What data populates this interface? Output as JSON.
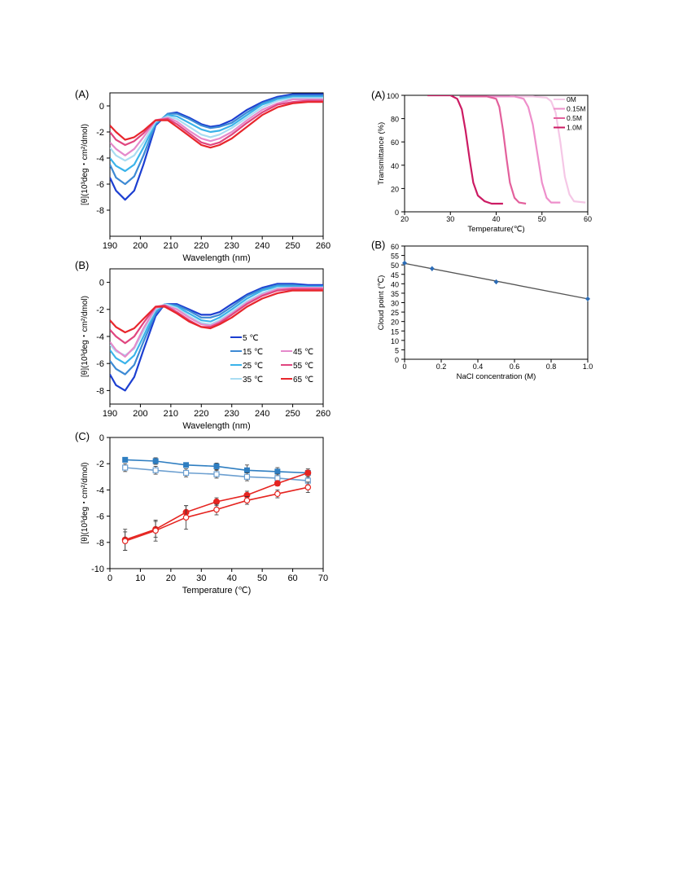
{
  "colors": {
    "t5": "#1c3fd1",
    "t15": "#3d8ad4",
    "t25": "#3ab3ea",
    "t35": "#a9ddf2",
    "t45": "#e58acb",
    "t55": "#e0457f",
    "t65": "#e8262c",
    "c0": "#f5c7e6",
    "c015": "#ee8fcb",
    "c05": "#e3609c",
    "c10": "#cc1b63",
    "blue_filled": "#2f7ec1",
    "blue_open": "#6c9fd0",
    "red": "#e52420",
    "fit_line": "#555555",
    "marker": "#2b6bb5"
  },
  "chart_data": [
    {
      "id": "left_A",
      "type": "line",
      "panel_label": "(A)",
      "xlabel": "Wavelength (nm)",
      "ylabel": "[θ](10³deg・cm²/dmol)",
      "xlim": [
        190,
        260
      ],
      "ylim": [
        -10,
        1
      ],
      "xticks": [
        190,
        200,
        210,
        220,
        230,
        240,
        250,
        260
      ],
      "yticks": [
        0,
        -2,
        -4,
        -6,
        -8
      ],
      "series": [
        {
          "color_key": "t5",
          "x": [
            190,
            192,
            195,
            198,
            201,
            205,
            209,
            212,
            216,
            220,
            223,
            226,
            230,
            235,
            240,
            245,
            250,
            255,
            260
          ],
          "y": [
            -5.5,
            -6.5,
            -7.2,
            -6.5,
            -4.5,
            -1.5,
            -0.6,
            -0.5,
            -0.9,
            -1.4,
            -1.6,
            -1.5,
            -1.1,
            -0.3,
            0.3,
            0.7,
            0.9,
            0.9,
            0.9
          ]
        },
        {
          "color_key": "t15",
          "x": [
            190,
            192,
            195,
            198,
            201,
            205,
            209,
            212,
            216,
            220,
            223,
            226,
            230,
            235,
            240,
            245,
            250,
            255,
            260
          ],
          "y": [
            -4.5,
            -5.5,
            -6.0,
            -5.4,
            -3.8,
            -1.4,
            -0.6,
            -0.6,
            -1.0,
            -1.5,
            -1.7,
            -1.6,
            -1.3,
            -0.5,
            0.2,
            0.6,
            0.8,
            0.8,
            0.8
          ]
        },
        {
          "color_key": "t25",
          "x": [
            190,
            192,
            195,
            198,
            201,
            205,
            209,
            212,
            216,
            220,
            223,
            226,
            230,
            235,
            240,
            245,
            250,
            255,
            260
          ],
          "y": [
            -4.0,
            -4.6,
            -5.0,
            -4.5,
            -3.2,
            -1.3,
            -0.7,
            -0.8,
            -1.3,
            -1.8,
            -2.0,
            -1.9,
            -1.5,
            -0.7,
            0.1,
            0.5,
            0.7,
            0.7,
            0.7
          ]
        },
        {
          "color_key": "t35",
          "x": [
            190,
            192,
            195,
            198,
            201,
            205,
            209,
            212,
            216,
            220,
            223,
            226,
            230,
            235,
            240,
            245,
            250,
            255,
            260
          ],
          "y": [
            -3.2,
            -3.8,
            -4.2,
            -3.8,
            -2.8,
            -1.2,
            -0.8,
            -1.0,
            -1.6,
            -2.2,
            -2.4,
            -2.2,
            -1.7,
            -0.9,
            -0.1,
            0.4,
            0.6,
            0.6,
            0.6
          ]
        },
        {
          "color_key": "t45",
          "x": [
            190,
            192,
            195,
            198,
            201,
            205,
            209,
            212,
            216,
            220,
            223,
            226,
            230,
            235,
            240,
            245,
            250,
            255,
            260
          ],
          "y": [
            -2.8,
            -3.3,
            -3.8,
            -3.3,
            -2.4,
            -1.1,
            -0.9,
            -1.2,
            -1.9,
            -2.5,
            -2.7,
            -2.5,
            -2.0,
            -1.1,
            -0.3,
            0.2,
            0.5,
            0.5,
            0.5
          ]
        },
        {
          "color_key": "t55",
          "x": [
            190,
            192,
            195,
            198,
            201,
            205,
            209,
            212,
            216,
            220,
            223,
            226,
            230,
            235,
            240,
            245,
            250,
            255,
            260
          ],
          "y": [
            -2.0,
            -2.6,
            -3.0,
            -2.7,
            -2.1,
            -1.1,
            -1.0,
            -1.4,
            -2.1,
            -2.8,
            -3.0,
            -2.8,
            -2.2,
            -1.3,
            -0.5,
            0.1,
            0.3,
            0.4,
            0.4
          ]
        },
        {
          "color_key": "t65",
          "x": [
            190,
            192,
            195,
            198,
            201,
            205,
            209,
            212,
            216,
            220,
            223,
            226,
            230,
            235,
            240,
            245,
            250,
            255,
            260
          ],
          "y": [
            -1.5,
            -2.0,
            -2.6,
            -2.4,
            -1.9,
            -1.1,
            -1.1,
            -1.6,
            -2.3,
            -3.0,
            -3.2,
            -3.0,
            -2.5,
            -1.6,
            -0.7,
            -0.1,
            0.2,
            0.3,
            0.3
          ]
        }
      ]
    },
    {
      "id": "left_B",
      "type": "line",
      "panel_label": "(B)",
      "xlabel": "Wavelength (nm)",
      "ylabel": "[θ](10³deg・cm²/dmol)",
      "xlim": [
        190,
        260
      ],
      "ylim": [
        -9,
        1
      ],
      "xticks": [
        190,
        200,
        210,
        220,
        230,
        240,
        250,
        260
      ],
      "yticks": [
        0,
        -2,
        -4,
        -6,
        -8
      ],
      "legend": [
        "5 ℃",
        "15 ℃",
        "25 ℃",
        "35 ℃",
        "45 ℃",
        "55 ℃",
        "65 ℃"
      ],
      "series": [
        {
          "name": "5 ℃",
          "color_key": "t5",
          "x": [
            190,
            192,
            195,
            198,
            201,
            205,
            208,
            212,
            216,
            220,
            223,
            226,
            230,
            235,
            240,
            245,
            250,
            255,
            260
          ],
          "y": [
            -6.8,
            -7.6,
            -8.0,
            -7.0,
            -5.0,
            -2.5,
            -1.6,
            -1.6,
            -2.0,
            -2.4,
            -2.4,
            -2.2,
            -1.6,
            -0.9,
            -0.4,
            -0.1,
            -0.1,
            -0.2,
            -0.2
          ]
        },
        {
          "name": "15 ℃",
          "color_key": "t15",
          "x": [
            190,
            192,
            195,
            198,
            201,
            205,
            208,
            212,
            216,
            220,
            223,
            226,
            230,
            235,
            240,
            245,
            250,
            255,
            260
          ],
          "y": [
            -5.8,
            -6.4,
            -6.8,
            -6.1,
            -4.4,
            -2.3,
            -1.6,
            -1.7,
            -2.1,
            -2.6,
            -2.6,
            -2.4,
            -1.8,
            -1.0,
            -0.5,
            -0.2,
            -0.2,
            -0.3,
            -0.3
          ]
        },
        {
          "name": "25 ℃",
          "color_key": "t25",
          "x": [
            190,
            192,
            195,
            198,
            201,
            205,
            208,
            212,
            216,
            220,
            223,
            226,
            230,
            235,
            240,
            245,
            250,
            255,
            260
          ],
          "y": [
            -5.0,
            -5.6,
            -6.0,
            -5.4,
            -4.0,
            -2.1,
            -1.6,
            -1.8,
            -2.3,
            -2.8,
            -2.9,
            -2.6,
            -2.0,
            -1.2,
            -0.6,
            -0.3,
            -0.3,
            -0.3,
            -0.3
          ]
        },
        {
          "name": "35 ℃",
          "color_key": "t35",
          "x": [
            190,
            192,
            195,
            198,
            201,
            205,
            208,
            212,
            216,
            220,
            223,
            226,
            230,
            235,
            240,
            245,
            250,
            255,
            260
          ],
          "y": [
            -4.6,
            -5.1,
            -5.4,
            -4.9,
            -3.6,
            -2.0,
            -1.6,
            -1.9,
            -2.5,
            -3.0,
            -3.1,
            -2.8,
            -2.2,
            -1.4,
            -0.8,
            -0.4,
            -0.4,
            -0.4,
            -0.4
          ]
        },
        {
          "name": "45 ℃",
          "color_key": "t45",
          "x": [
            190,
            192,
            195,
            198,
            201,
            205,
            208,
            212,
            216,
            220,
            223,
            226,
            230,
            235,
            240,
            245,
            250,
            255,
            260
          ],
          "y": [
            -4.4,
            -5.0,
            -5.5,
            -4.8,
            -3.4,
            -1.9,
            -1.7,
            -2.0,
            -2.6,
            -3.1,
            -3.2,
            -2.9,
            -2.3,
            -1.5,
            -0.9,
            -0.5,
            -0.4,
            -0.4,
            -0.4
          ]
        },
        {
          "name": "55 ℃",
          "color_key": "t55",
          "x": [
            190,
            192,
            195,
            198,
            201,
            205,
            208,
            212,
            216,
            220,
            223,
            226,
            230,
            235,
            240,
            245,
            250,
            255,
            260
          ],
          "y": [
            -3.5,
            -4.0,
            -4.5,
            -4.0,
            -3.0,
            -1.8,
            -1.7,
            -2.2,
            -2.8,
            -3.3,
            -3.3,
            -3.0,
            -2.4,
            -1.6,
            -1.0,
            -0.6,
            -0.5,
            -0.5,
            -0.5
          ]
        },
        {
          "name": "65 ℃",
          "color_key": "t65",
          "x": [
            190,
            192,
            195,
            198,
            201,
            205,
            208,
            212,
            216,
            220,
            223,
            226,
            230,
            235,
            240,
            245,
            250,
            255,
            260
          ],
          "y": [
            -2.8,
            -3.3,
            -3.7,
            -3.4,
            -2.7,
            -1.8,
            -1.8,
            -2.3,
            -2.9,
            -3.3,
            -3.4,
            -3.1,
            -2.6,
            -1.8,
            -1.2,
            -0.8,
            -0.6,
            -0.6,
            -0.6
          ]
        }
      ]
    },
    {
      "id": "left_C",
      "type": "line",
      "panel_label": "(C)",
      "xlabel": "Temperature (℃)",
      "ylabel": "[θ](10³deg・cm²/dmol)",
      "xlim": [
        0,
        70
      ],
      "ylim": [
        -10,
        0
      ],
      "xticks": [
        0,
        10,
        20,
        30,
        40,
        50,
        60,
        70
      ],
      "yticks": [
        0,
        -2,
        -4,
        -6,
        -8,
        -10
      ],
      "series": [
        {
          "color_key": "blue_filled",
          "marker": "filled-square",
          "x": [
            5,
            15,
            25,
            35,
            45,
            55,
            65
          ],
          "y": [
            -1.7,
            -1.8,
            -2.1,
            -2.2,
            -2.5,
            -2.6,
            -2.7
          ],
          "err": [
            0.15,
            0.25,
            0.15,
            0.25,
            0.4,
            0.3,
            0.3
          ]
        },
        {
          "color_key": "blue_open",
          "marker": "open-square",
          "x": [
            5,
            15,
            25,
            35,
            45,
            55,
            65
          ],
          "y": [
            -2.3,
            -2.5,
            -2.7,
            -2.8,
            -3.0,
            -3.1,
            -3.3
          ],
          "err": [
            0.3,
            0.3,
            0.3,
            0.3,
            0.3,
            0.3,
            0.3
          ]
        },
        {
          "color_key": "red",
          "marker": "filled-circle",
          "x": [
            5,
            15,
            25,
            35,
            45,
            55,
            65
          ],
          "y": [
            -7.8,
            -7.0,
            -5.7,
            -4.9,
            -4.4,
            -3.5,
            -2.7
          ],
          "err": [
            0.8,
            0.6,
            0.5,
            0.3,
            0.3,
            0.2,
            0.2
          ]
        },
        {
          "color_key": "red",
          "marker": "open-circle",
          "x": [
            5,
            15,
            25,
            35,
            45,
            55,
            65
          ],
          "y": [
            -7.9,
            -7.1,
            -6.1,
            -5.5,
            -4.8,
            -4.3,
            -3.8
          ],
          "err": [
            0.7,
            0.8,
            0.9,
            0.4,
            0.3,
            0.3,
            0.4
          ]
        }
      ]
    },
    {
      "id": "right_A",
      "type": "line",
      "panel_label": "(A)",
      "xlabel": "Temperature(℃)",
      "ylabel": "Transmittance (%)",
      "xlim": [
        20,
        60
      ],
      "ylim": [
        0,
        100
      ],
      "xticks": [
        20,
        30,
        40,
        50,
        60
      ],
      "yticks": [
        0,
        20,
        40,
        60,
        80,
        100
      ],
      "legend": [
        "0M",
        "0.15M",
        "0.5M",
        "1.0M"
      ],
      "series": [
        {
          "name": "0M",
          "color_key": "c0",
          "x": [
            43,
            48,
            51,
            52,
            53,
            54,
            55,
            56,
            57,
            59.5
          ],
          "y": [
            99,
            99,
            98,
            95,
            85,
            60,
            30,
            15,
            9,
            8
          ]
        },
        {
          "name": "0.15M",
          "color_key": "c015",
          "x": [
            38,
            44,
            46,
            47,
            48,
            49,
            50,
            51,
            52,
            54
          ],
          "y": [
            99,
            99,
            97,
            90,
            75,
            50,
            25,
            12,
            8,
            8
          ]
        },
        {
          "name": "0.5M",
          "color_key": "c05",
          "x": [
            32,
            38,
            40,
            40.7,
            41.5,
            42.3,
            43,
            44,
            45,
            46.5
          ],
          "y": [
            99,
            99,
            97,
            90,
            70,
            45,
            25,
            12,
            8,
            7
          ]
        },
        {
          "name": "1.0M",
          "color_key": "c10",
          "x": [
            25,
            30,
            31.5,
            32.5,
            33.3,
            34.2,
            35,
            36,
            37.5,
            39,
            41.5
          ],
          "y": [
            100,
            100,
            97,
            88,
            70,
            45,
            25,
            14,
            9,
            7,
            7
          ]
        }
      ]
    },
    {
      "id": "right_B",
      "type": "scatter",
      "panel_label": "(B)",
      "xlabel": "NaCl concentration (M)",
      "ylabel": "Cloud point (℃)",
      "xlim": [
        0,
        1.0
      ],
      "ylim": [
        0,
        60
      ],
      "xticks": [
        0,
        0.2,
        0.4,
        0.6,
        0.8,
        1.0
      ],
      "yticks": [
        0,
        5,
        10,
        15,
        20,
        25,
        30,
        35,
        40,
        45,
        50,
        55,
        60
      ],
      "x": [
        0,
        0.15,
        0.5,
        1.0
      ],
      "y": [
        51,
        48,
        41,
        32
      ],
      "fit": {
        "x": [
          0,
          1.0
        ],
        "y": [
          50.8,
          32.0
        ]
      }
    }
  ]
}
